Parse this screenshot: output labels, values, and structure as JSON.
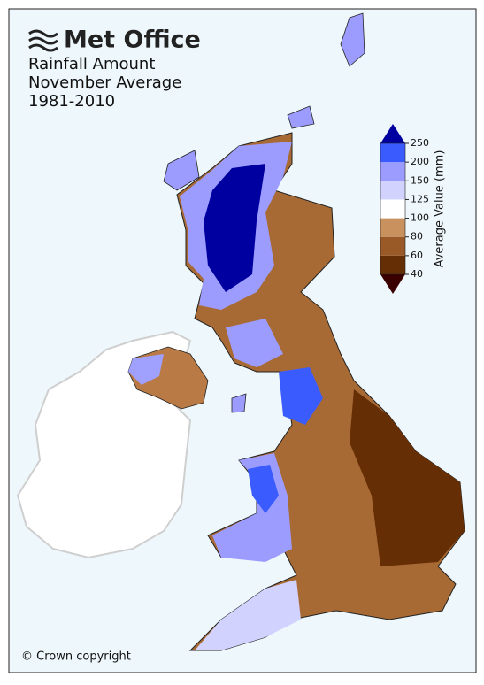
{
  "header": {
    "logo": "Met Office",
    "title_lines": [
      "Rainfall Amount",
      "November Average",
      "1981-2010"
    ]
  },
  "legend": {
    "label": "Average Value (mm)",
    "ticks": [
      40,
      60,
      80,
      100,
      125,
      150,
      200,
      250
    ],
    "colors": [
      "#662e05",
      "#9a5a28",
      "#c8915e",
      "#ffffff",
      "#d2d2ff",
      "#9c9cff",
      "#3a5cff"
    ],
    "under_color": "#3a0000",
    "over_color": "#0000a0"
  },
  "footer": {
    "copyright": "© Crown copyright"
  }
}
